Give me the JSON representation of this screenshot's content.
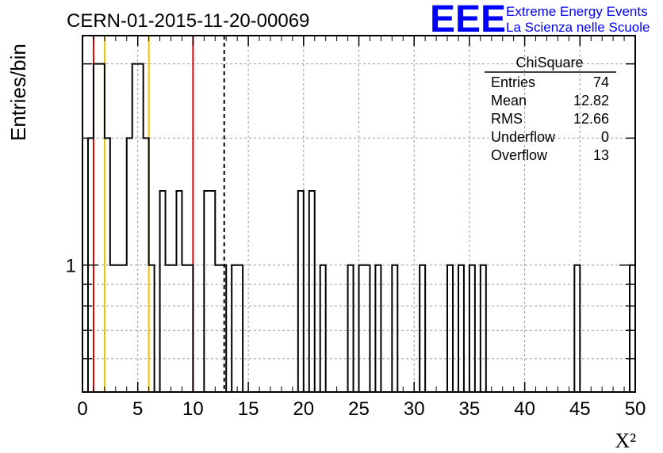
{
  "title": "CERN-01-2015-11-20-00069",
  "logo": {
    "mark": "EEE",
    "line1": "Extreme Energy Events",
    "line2": "La Scienza nelle Scuole"
  },
  "stats": {
    "name": "ChiSquare",
    "rows": [
      {
        "label": "Entries",
        "value": "74"
      },
      {
        "label": "Mean",
        "value": "12.82"
      },
      {
        "label": "RMS",
        "value": "12.66"
      },
      {
        "label": "Underflow",
        "value": "0"
      },
      {
        "label": "Overflow",
        "value": "13"
      }
    ]
  },
  "colors": {
    "red": "#dd0000",
    "yellow": "#f0c000",
    "histogram": "#000000",
    "logo": "#0000ff"
  },
  "chart_data": {
    "type": "bar",
    "subtype": "histogram-step",
    "xlabel": "X²",
    "ylabel": "Entries/bin",
    "xlim": [
      0,
      50
    ],
    "ylim": [
      0.5,
      3.5
    ],
    "yscale": "log",
    "bin_width": 0.5,
    "x_ticks": [
      0,
      5,
      10,
      15,
      20,
      25,
      30,
      35,
      40,
      45,
      50
    ],
    "y_tick_labels": [
      {
        "value": 1,
        "label": "1"
      }
    ],
    "grid": true,
    "vertical_lines": [
      {
        "x": 1.0,
        "color": "red",
        "style": "solid"
      },
      {
        "x": 2.0,
        "color": "yellow",
        "style": "solid"
      },
      {
        "x": 6.0,
        "color": "yellow",
        "style": "solid"
      },
      {
        "x": 10.0,
        "color": "red",
        "style": "solid"
      },
      {
        "x": 12.82,
        "color": "black",
        "style": "dashed"
      }
    ],
    "bins": [
      {
        "x0": 0.5,
        "count": 2
      },
      {
        "x0": 1.0,
        "count": 3
      },
      {
        "x0": 1.5,
        "count": 3
      },
      {
        "x0": 2.0,
        "count": 2
      },
      {
        "x0": 2.5,
        "count": 1
      },
      {
        "x0": 3.0,
        "count": 1
      },
      {
        "x0": 3.5,
        "count": 1
      },
      {
        "x0": 4.0,
        "count": 2
      },
      {
        "x0": 4.5,
        "count": 3
      },
      {
        "x0": 5.0,
        "count": 3
      },
      {
        "x0": 5.5,
        "count": 2
      },
      {
        "x0": 6.0,
        "count": 1
      },
      {
        "x0": 7.0,
        "count": 1.5
      },
      {
        "x0": 7.5,
        "count": 1
      },
      {
        "x0": 8.0,
        "count": 1
      },
      {
        "x0": 8.5,
        "count": 1.5
      },
      {
        "x0": 9.0,
        "count": 1
      },
      {
        "x0": 9.5,
        "count": 1
      },
      {
        "x0": 11.0,
        "count": 1.5
      },
      {
        "x0": 11.5,
        "count": 1.5
      },
      {
        "x0": 12.0,
        "count": 1
      },
      {
        "x0": 12.5,
        "count": 1
      },
      {
        "x0": 13.5,
        "count": 1
      },
      {
        "x0": 14.0,
        "count": 1
      },
      {
        "x0": 19.5,
        "count": 1.5
      },
      {
        "x0": 20.5,
        "count": 1.5
      },
      {
        "x0": 21.5,
        "count": 1
      },
      {
        "x0": 24.0,
        "count": 1
      },
      {
        "x0": 25.0,
        "count": 1
      },
      {
        "x0": 25.5,
        "count": 1
      },
      {
        "x0": 26.5,
        "count": 1
      },
      {
        "x0": 28.0,
        "count": 1
      },
      {
        "x0": 30.5,
        "count": 1
      },
      {
        "x0": 33.0,
        "count": 1
      },
      {
        "x0": 34.0,
        "count": 1
      },
      {
        "x0": 35.0,
        "count": 1
      },
      {
        "x0": 36.0,
        "count": 1
      },
      {
        "x0": 44.5,
        "count": 1
      },
      {
        "x0": 49.5,
        "count": 1
      }
    ]
  }
}
